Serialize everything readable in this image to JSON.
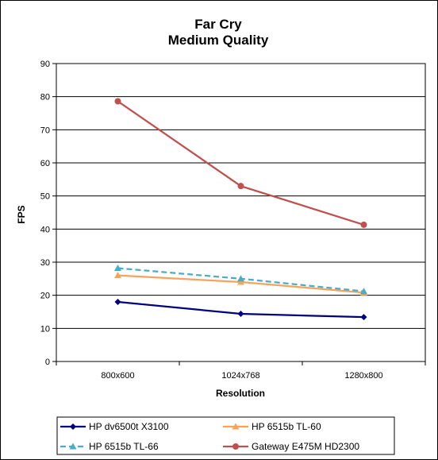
{
  "chart_data": {
    "type": "line",
    "title": "Far Cry",
    "subtitle": "Medium Quality",
    "xlabel": "Resolution",
    "ylabel": "FPS",
    "categories": [
      "800x600",
      "1024x768",
      "1280x800"
    ],
    "ylim": [
      0,
      90
    ],
    "yticks": [
      0,
      10,
      20,
      30,
      40,
      50,
      60,
      70,
      80,
      90
    ],
    "grid": true,
    "legend_position": "bottom",
    "series": [
      {
        "name": "HP dv6500t  X3100",
        "values": [
          18,
          14.4,
          13.4
        ],
        "color": "#000080",
        "marker": "diamond",
        "dashed": false
      },
      {
        "name": "HP 6515b  TL-60",
        "values": [
          26,
          24,
          20.8
        ],
        "color": "#F7A35C",
        "marker": "triangle",
        "dashed": false
      },
      {
        "name": "HP 6515b  TL-66",
        "values": [
          28.2,
          25,
          21.2
        ],
        "color": "#4BACC6",
        "marker": "triangle",
        "dashed": true
      },
      {
        "name": "Gateway  E475M  HD2300",
        "values": [
          78.6,
          53,
          41.3
        ],
        "color": "#C0504D",
        "marker": "circle",
        "dashed": false
      }
    ]
  }
}
